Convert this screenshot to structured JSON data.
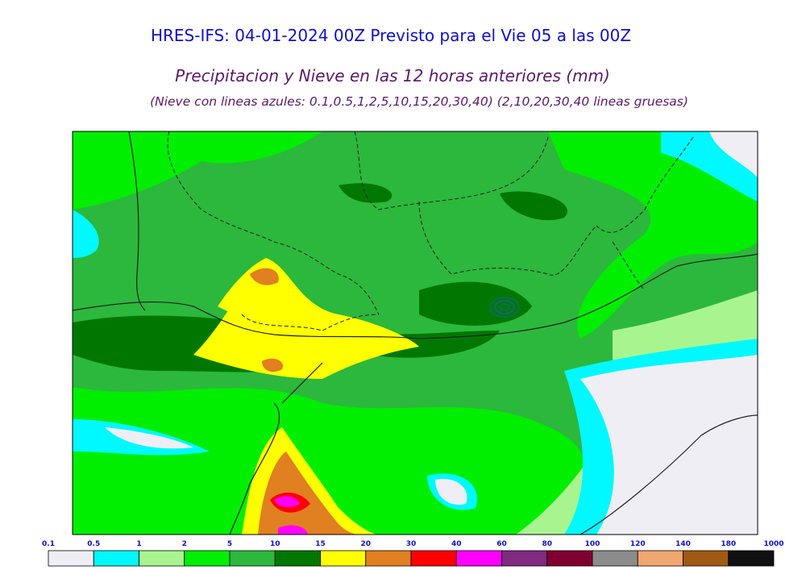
{
  "header": {
    "title": "HRES-IFS: 04-01-2024 00Z Previsto para el Vie 05 a las 00Z",
    "subtitle": "Precipitacion y Nieve en las 12 horas anteriores (mm)",
    "note": "(Nieve con lineas azules: 0.1,0.5,1,2,5,10,15,20,30,40)  (2,10,20,30,40 lineas gruesas)"
  },
  "legend": {
    "ticks": [
      0.1,
      0.5,
      1,
      2,
      5,
      10,
      15,
      20,
      30,
      40,
      60,
      80,
      100,
      120,
      140,
      180,
      1000
    ],
    "colors": [
      "#eeeef4",
      "#00f8ff",
      "#a8f590",
      "#00ee00",
      "#2cb83c",
      "#007800",
      "#ffff00",
      "#e08020",
      "#ff0000",
      "#ff00ff",
      "#802a80",
      "#800030",
      "#8c8c8c",
      "#f0a870",
      "#a05a14",
      "#101010"
    ]
  }
}
